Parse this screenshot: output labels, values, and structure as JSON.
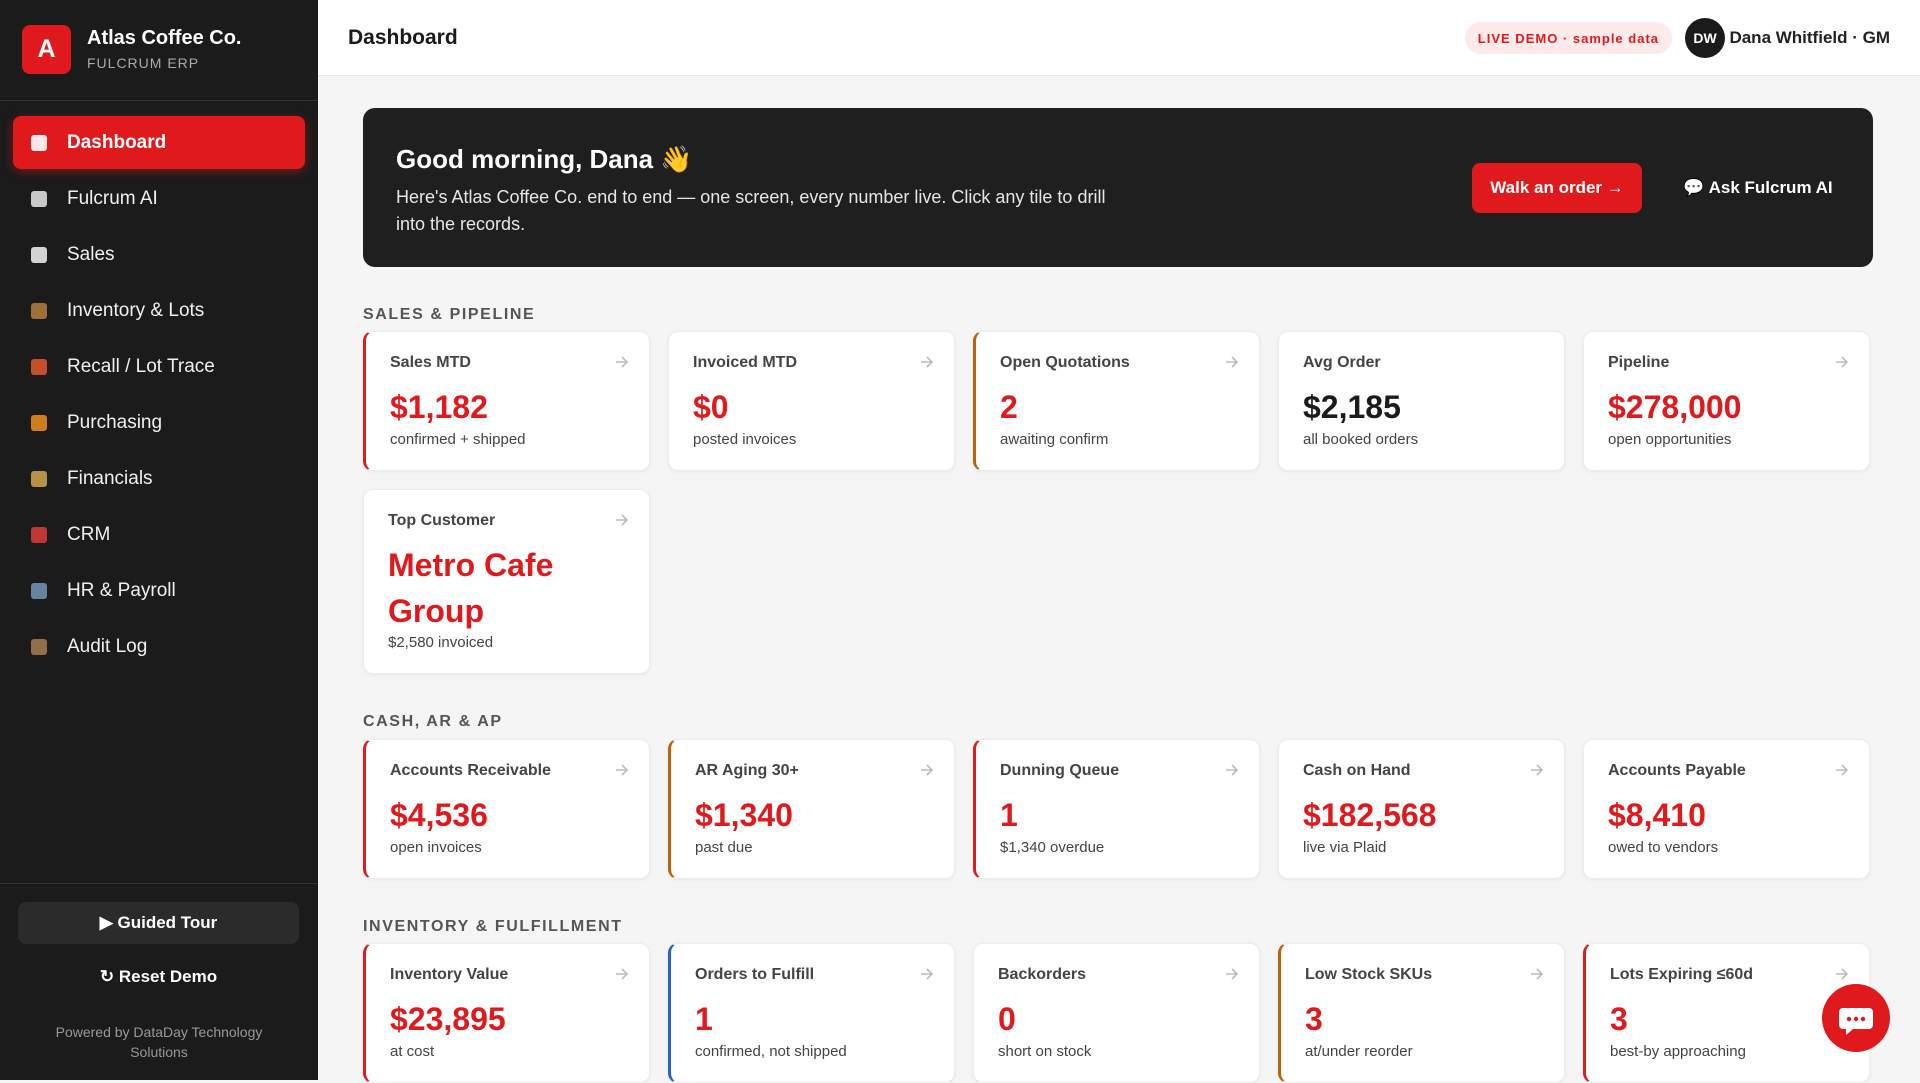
{
  "sidebar": {
    "brand": {
      "logo": "A",
      "name": "Atlas Coffee Co.",
      "subtitle": "FULCRUM ERP"
    },
    "nav": [
      {
        "label": "Dashboard",
        "active": true
      },
      {
        "label": "Fulcrum AI"
      },
      {
        "label": "Sales"
      },
      {
        "label": "Inventory & Lots"
      },
      {
        "label": "Recall / Lot Trace"
      },
      {
        "label": "Purchasing"
      },
      {
        "label": "Financials"
      },
      {
        "label": "CRM"
      },
      {
        "label": "HR & Payroll"
      },
      {
        "label": "Audit Log"
      }
    ],
    "buttons": [
      "▶ Guided Tour",
      "↻ Reset Demo"
    ],
    "footer": "Powered by DataDay Technology Solutions"
  },
  "header": {
    "title": "Dashboard",
    "badge": "LIVE DEMO · sample data",
    "avatar": "DW",
    "user": "Dana Whitfield · GM"
  },
  "banner": {
    "title": "Good morning, Dana 👋",
    "text": "Here's Atlas Coffee Co. end to end — one screen, every number live. Click any tile to drill into the records.",
    "primary_button": "Walk an order →",
    "secondary_button": "💬 Ask Fulcrum AI"
  },
  "sections": [
    {
      "title": "SALES & PIPELINE",
      "tiles": [
        {
          "label": "Sales MTD",
          "value": "$1,182",
          "sub": "confirmed + shipped",
          "accent": "#d81e1e"
        },
        {
          "label": "Invoiced MTD",
          "value": "$0",
          "sub": "posted invoices"
        },
        {
          "label": "Open Quotations",
          "value": "2",
          "sub": "awaiting confirm",
          "accent": "#b8650c"
        },
        {
          "label": "Avg Order",
          "value": "$2,185",
          "sub": "all booked orders",
          "value_color": "#1b1b1b",
          "clickable": false
        },
        {
          "label": "Pipeline",
          "value": "$278,000",
          "sub": "open opportunities"
        },
        {
          "label": "Top Customer",
          "value": "Metro Cafe Group",
          "sub": "$2,580 invoiced"
        }
      ]
    },
    {
      "title": "CASH, AR & AP",
      "tiles": [
        {
          "label": "Accounts Receivable",
          "value": "$4,536",
          "sub": "open invoices",
          "accent": "#d81e1e"
        },
        {
          "label": "AR Aging 30+",
          "value": "$1,340",
          "sub": "past due",
          "accent": "#b8650c"
        },
        {
          "label": "Dunning Queue",
          "value": "1",
          "sub": "$1,340 overdue",
          "accent": "#d81e1e"
        },
        {
          "label": "Cash on Hand",
          "value": "$182,568",
          "sub": "live via Plaid"
        },
        {
          "label": "Accounts Payable",
          "value": "$8,410",
          "sub": "owed to vendors"
        }
      ]
    },
    {
      "title": "INVENTORY & FULFILLMENT",
      "tiles": [
        {
          "label": "Inventory Value",
          "value": "$23,895",
          "sub": "at cost",
          "accent": "#d81e1e"
        },
        {
          "label": "Orders to Fulfill",
          "value": "1",
          "sub": "confirmed, not shipped",
          "accent": "#2563c9"
        },
        {
          "label": "Backorders",
          "value": "0",
          "sub": "short on stock"
        },
        {
          "label": "Low Stock SKUs",
          "value": "3",
          "sub": "at/under reorder",
          "accent": "#b8650c"
        },
        {
          "label": "Lots Expiring ≤60d",
          "value": "3",
          "sub": "best-by approaching",
          "accent": "#d81e1e"
        }
      ]
    }
  ]
}
